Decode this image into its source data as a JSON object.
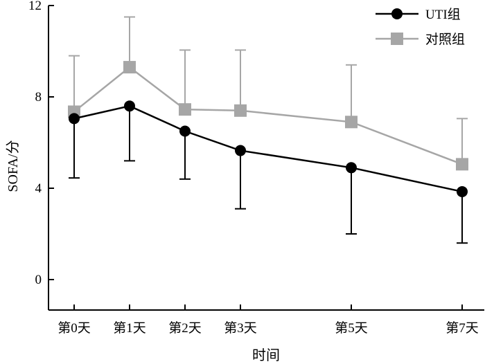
{
  "chart_data": {
    "type": "line",
    "categories": [
      "第0天",
      "第1天",
      "第2天",
      "第3天",
      "第5天",
      "第7天"
    ],
    "x": [
      0,
      1,
      2,
      3,
      5,
      7
    ],
    "xlabel": "时间",
    "ylabel": "SOFA/分",
    "ylim": [
      -1.3,
      12
    ],
    "yticks": [
      0,
      4,
      8,
      12
    ],
    "grid": false,
    "legend_position": "top-right",
    "series": [
      {
        "name": "对照组",
        "color": "#a6a6a6",
        "marker": "square",
        "values": [
          7.35,
          9.3,
          7.45,
          7.4,
          6.9,
          5.05
        ],
        "error_upper": [
          9.8,
          11.5,
          10.05,
          10.05,
          9.4,
          7.05
        ]
      },
      {
        "name": "UTI组",
        "color": "#000000",
        "marker": "circle",
        "values": [
          7.05,
          7.6,
          6.5,
          5.65,
          4.9,
          3.85
        ],
        "error_lower": [
          4.45,
          5.2,
          4.4,
          3.1,
          2.0,
          1.6
        ]
      }
    ]
  }
}
